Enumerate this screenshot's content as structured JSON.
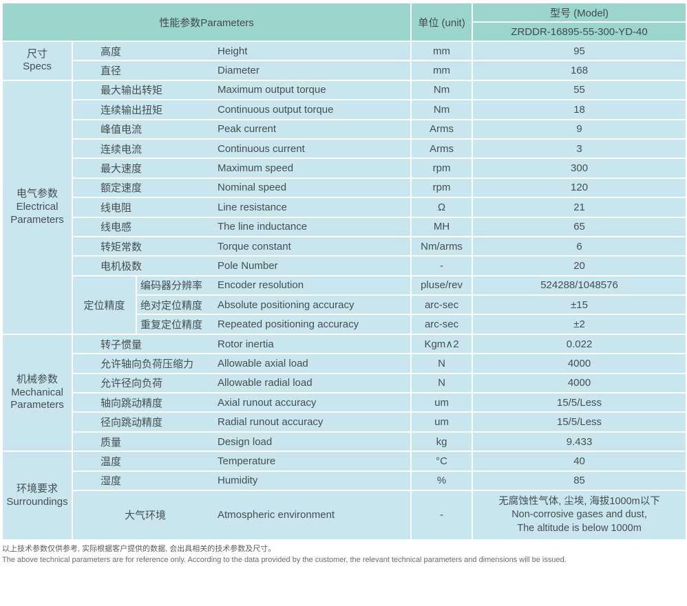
{
  "header": {
    "params_label": "性能参数Parameters",
    "unit_label": "单位 (unit)",
    "model_label": "型号 (Model)",
    "model_value": "ZRDDR-16895-55-300-YD-40"
  },
  "colors": {
    "header_bg": "#9bd5cd",
    "cell_bg": "#c9e6ee",
    "border": "#ffffff",
    "text": "#454e50"
  },
  "sections": [
    {
      "zh": "尺寸",
      "en": "Specs",
      "rows": [
        {
          "zh": "高度",
          "en": "Height",
          "unit": "mm",
          "value": "95"
        },
        {
          "zh": "直径",
          "en": "Diameter",
          "unit": "mm",
          "value": "168"
        }
      ]
    },
    {
      "zh": "电气参数",
      "en": "Electrical Parameters",
      "rows": [
        {
          "zh": "最大输出转矩",
          "en": "Maximum output torque",
          "unit": "Nm",
          "value": "55"
        },
        {
          "zh": "连续输出扭矩",
          "en": "Continuous output torque",
          "unit": "Nm",
          "value": "18"
        },
        {
          "zh": "峰值电流",
          "en": "Peak current",
          "unit": "Arms",
          "value": "9"
        },
        {
          "zh": "连续电流",
          "en": "Continuous current",
          "unit": "Arms",
          "value": "3"
        },
        {
          "zh": "最大速度",
          "en": "Maximum speed",
          "unit": "rpm",
          "value": "300"
        },
        {
          "zh": "额定速度",
          "en": "Nominal speed",
          "unit": "rpm",
          "value": "120"
        },
        {
          "zh": "线电阻",
          "en": "Line resistance",
          "unit": "Ω",
          "value": "21"
        },
        {
          "zh": "线电感",
          "en": "The line inductance",
          "unit": "MH",
          "value": "65"
        },
        {
          "zh": "转矩常数",
          "en": "Torque constant",
          "unit": "Nm/arms",
          "value": "6"
        },
        {
          "zh": "电机极数",
          "en": "Pole Number",
          "unit": "-",
          "value": "20"
        },
        {
          "sub": "定位精度",
          "zh": "编码器分辨率",
          "en": "Encoder resolution",
          "unit": "pluse/rev",
          "value": "524288/1048576"
        },
        {
          "in_sub": true,
          "zh": "绝对定位精度",
          "en": "Absolute positioning accuracy",
          "unit": "arc-sec",
          "value": "±15"
        },
        {
          "in_sub": true,
          "zh": "重复定位精度",
          "en": "Repeated positioning accuracy",
          "unit": "arc-sec",
          "value": "±2"
        }
      ]
    },
    {
      "zh": "机械参数",
      "en": "Mechanical Parameters",
      "rows": [
        {
          "zh": "转子惯量",
          "en": "Rotor inertia",
          "unit": "Kgm∧2",
          "value": "0.022"
        },
        {
          "zh": "允许轴向负荷压缩力",
          "en": "Allowable axial load",
          "unit": "N",
          "value": "4000"
        },
        {
          "zh": "允许径向负荷",
          "en": "Allowable radial load",
          "unit": "N",
          "value": "4000"
        },
        {
          "zh": "轴向跳动精度",
          "en": "Axial runout accuracy",
          "unit": "um",
          "value": "15/5/Less"
        },
        {
          "zh": "径向跳动精度",
          "en": "Radial runout accuracy",
          "unit": "um",
          "value": "15/5/Less"
        },
        {
          "zh": "质量",
          "en": "Design load",
          "unit": "kg",
          "value": "9.433"
        }
      ]
    },
    {
      "zh": "环境要求",
      "en": "Surroundings",
      "rows": [
        {
          "zh": "温度",
          "en": "Temperature",
          "unit": "°C",
          "value": "40"
        },
        {
          "zh": "湿度",
          "en": "Humidity",
          "unit": "%",
          "value": "85"
        },
        {
          "zh": "大气环境",
          "en": "Atmospheric environment",
          "unit": "-",
          "zh_centered": true,
          "tall": true,
          "value_lines": [
            "无腐蚀性气体, 尘埃, 海拔1000m以下",
            "Non-corrosive gases and dust,",
            "The altitude is below 1000m"
          ]
        }
      ]
    }
  ],
  "footer": {
    "zh": "以上技术参数仅供参考, 实际根据客户提供的数据, 会出具相关的技术参数及尺寸。",
    "en": "The above technical parameters are for reference only. According to the data provided by the customer, the relevant technical parameters and dimensions will be issued."
  }
}
